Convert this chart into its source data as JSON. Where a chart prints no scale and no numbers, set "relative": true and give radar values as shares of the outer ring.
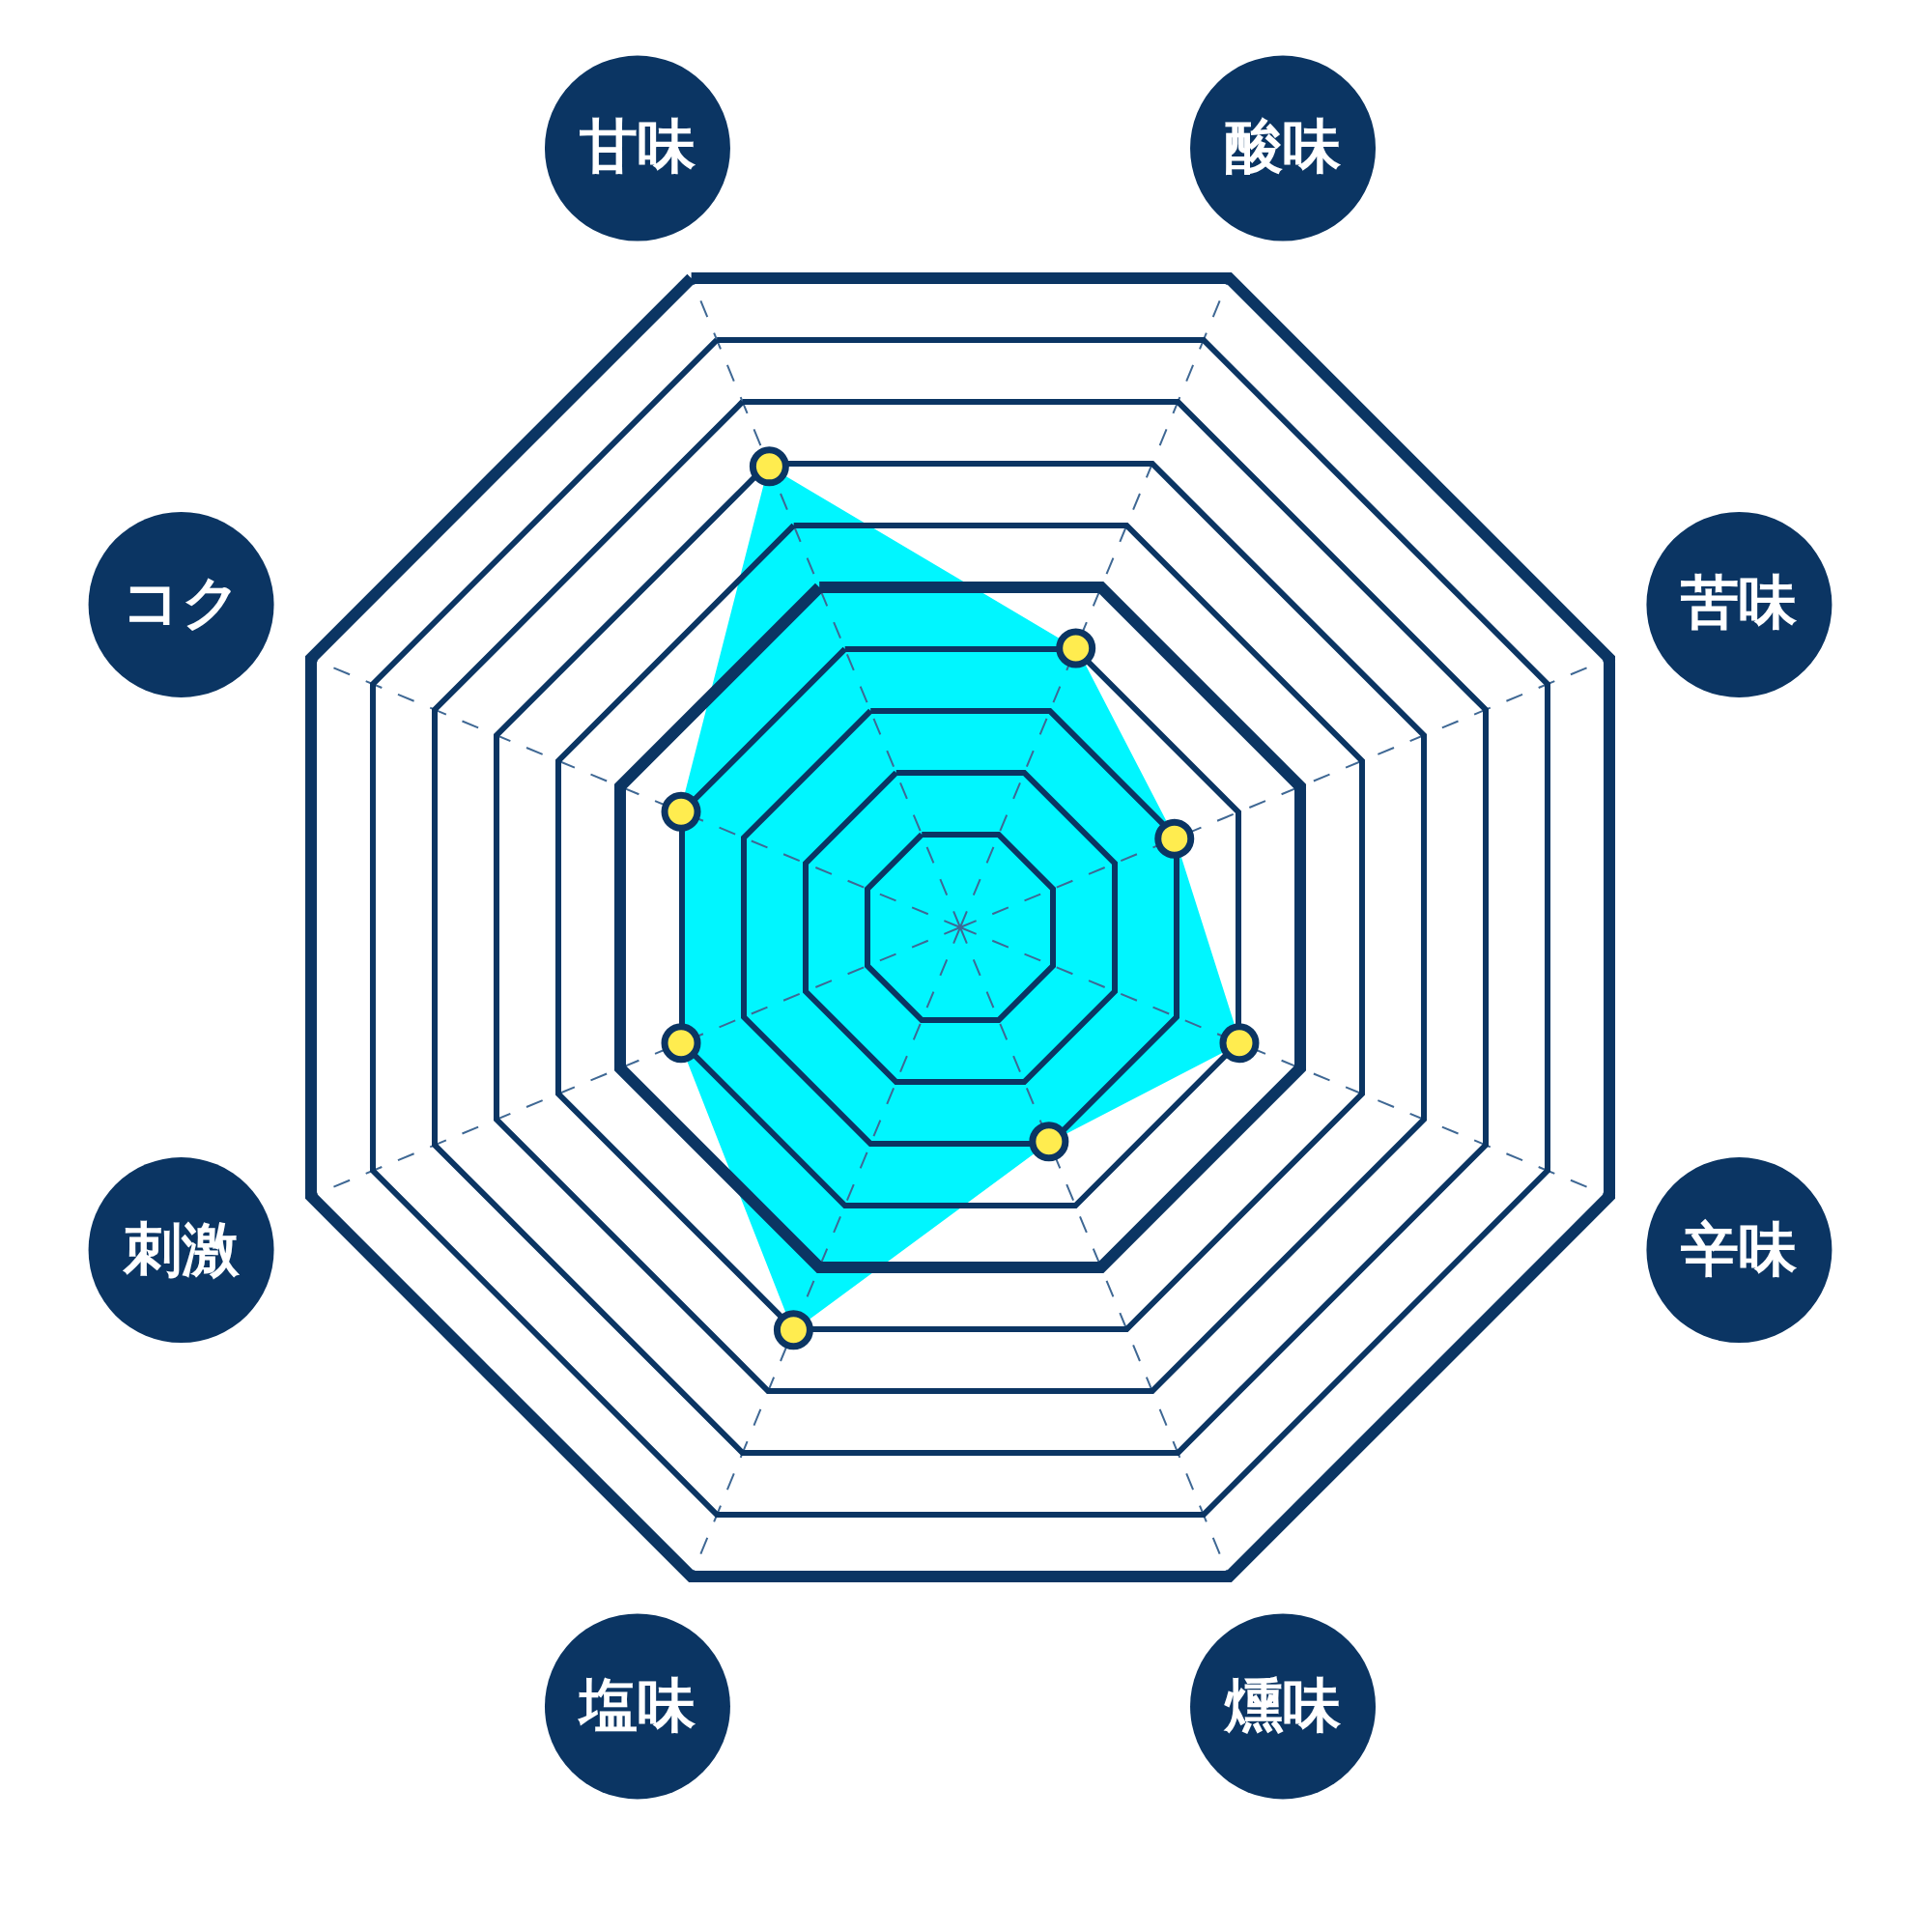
{
  "chart_data": {
    "type": "radar",
    "relative": true,
    "categories": [
      "酸味",
      "苦味",
      "辛味",
      "燻味",
      "塩味",
      "刺激",
      "コク",
      "甘味"
    ],
    "series": [
      {
        "color": "#00f6ff",
        "colors": [
          "#ffec4f",
          "#ffec4f",
          "#ffec4f",
          "#ffec4f",
          "#ffec4f",
          "#ffec4f",
          "#ffec4f",
          "#ffec4f"
        ],
        "values": [
          0.43,
          0.33,
          0.43,
          0.33,
          0.62,
          0.43,
          0.43,
          0.71
        ]
      }
    ],
    "marker": "circle",
    "grid": true
  }
}
